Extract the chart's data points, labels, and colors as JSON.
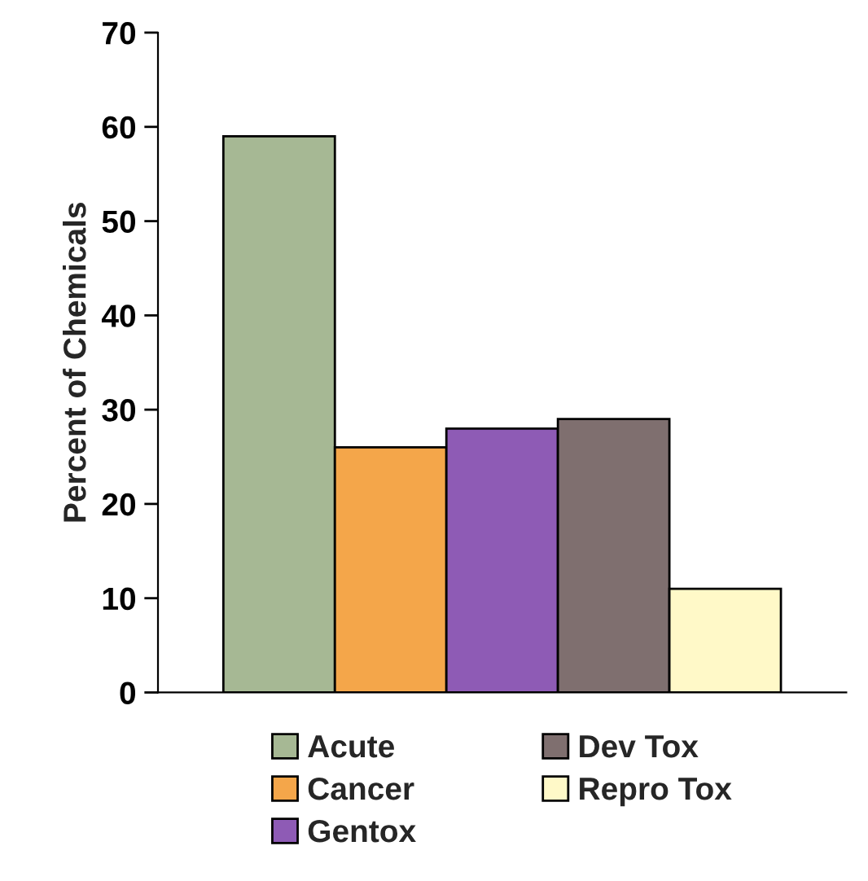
{
  "chart_data": {
    "type": "bar",
    "ylabel": "Percent of Chemicals",
    "categories": [
      null
    ],
    "series": [
      {
        "name": "Acute",
        "color": "#a6b894",
        "values": [
          59
        ]
      },
      {
        "name": "Cancer",
        "color": "#f4a64a",
        "values": [
          26
        ]
      },
      {
        "name": "Gentox",
        "color": "#8e5bb5",
        "values": [
          28
        ]
      },
      {
        "name": "Dev Tox",
        "color": "#7f6f6f",
        "values": [
          29
        ]
      },
      {
        "name": "Repro Tox",
        "color": "#fff9c8",
        "values": [
          11
        ]
      }
    ],
    "ylim": [
      0,
      70
    ],
    "yticks": [
      0,
      10,
      20,
      30,
      40,
      50,
      60,
      70
    ],
    "grid": false,
    "legend": "bottom"
  }
}
